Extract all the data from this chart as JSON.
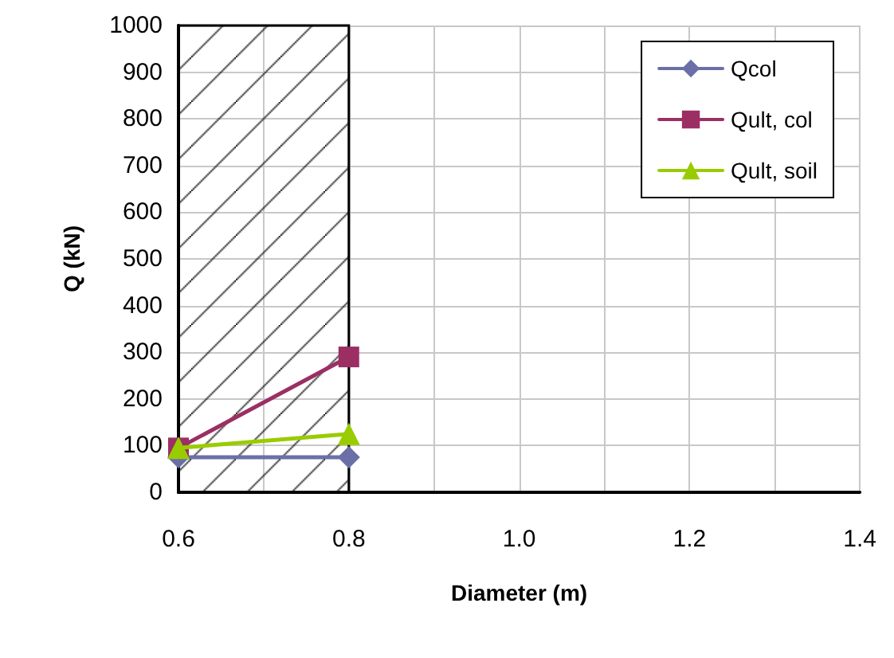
{
  "chart_data": {
    "type": "line",
    "xlabel": "Diameter (m)",
    "ylabel": "Q (kN)",
    "x": [
      0.6,
      0.8
    ],
    "series": [
      {
        "name": "Qcol",
        "color": "#6b6fa8",
        "values": [
          75,
          75
        ],
        "marker": "diamond"
      },
      {
        "name": "Qult, col",
        "color": "#9b2f64",
        "values": [
          95,
          290
        ],
        "marker": "square"
      },
      {
        "name": "Qult, soil",
        "color": "#99cc00",
        "values": [
          95,
          125
        ],
        "marker": "triangle"
      }
    ],
    "xlim": [
      0.6,
      1.4
    ],
    "xticks": [
      {
        "value": 0.6,
        "label": "0.6"
      },
      {
        "value": 0.7,
        "label": null
      },
      {
        "value": 0.8,
        "label": "0.8"
      },
      {
        "value": 0.9,
        "label": null
      },
      {
        "value": 1.0,
        "label": "1.0"
      },
      {
        "value": 1.1,
        "label": null
      },
      {
        "value": 1.2,
        "label": "1.2"
      },
      {
        "value": 1.3,
        "label": null
      },
      {
        "value": 1.4,
        "label": "1.4"
      }
    ],
    "ylim": [
      0,
      1000
    ],
    "yticks": [
      0,
      100,
      200,
      300,
      400,
      500,
      600,
      700,
      800,
      900,
      1000
    ],
    "bands": [
      {
        "axis": "x",
        "from": 0.6,
        "to": 0.8,
        "color": "#000000"
      }
    ],
    "grid": true,
    "legend": "top right",
    "line_style": "solid"
  }
}
